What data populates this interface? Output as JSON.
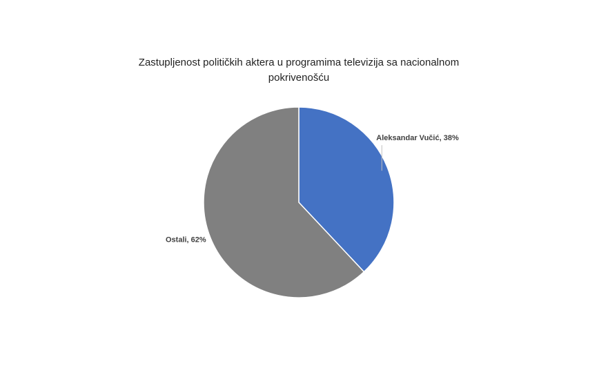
{
  "chart_data": {
    "type": "pie",
    "title": "Zastupljenost političkih aktera u programima televizija sa nacionalnom pokrivenošću",
    "categories": [
      "Aleksandar Vučić",
      "Ostali"
    ],
    "values": [
      38,
      62
    ],
    "value_labels": [
      "Aleksandar Vučić, 38%",
      "Ostali, 62%"
    ],
    "colors": [
      "#4472c4",
      "#808080"
    ]
  }
}
